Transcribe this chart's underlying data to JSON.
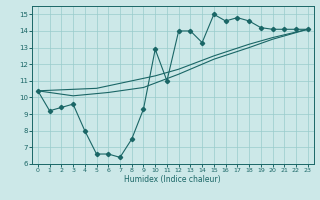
{
  "title": "",
  "xlabel": "Humidex (Indice chaleur)",
  "ylabel": "",
  "xlim": [
    -0.5,
    23.5
  ],
  "ylim": [
    6,
    15.5
  ],
  "xticks": [
    0,
    1,
    2,
    3,
    4,
    5,
    6,
    7,
    8,
    9,
    10,
    11,
    12,
    13,
    14,
    15,
    16,
    17,
    18,
    19,
    20,
    21,
    22,
    23
  ],
  "yticks": [
    6,
    7,
    8,
    9,
    10,
    11,
    12,
    13,
    14,
    15
  ],
  "bg_color": "#cce8e8",
  "grid_color": "#99cccc",
  "line_color": "#1a6666",
  "line1_x": [
    0,
    1,
    2,
    3,
    4,
    5,
    6,
    7,
    8,
    9,
    10,
    11,
    12,
    13,
    14,
    15,
    16,
    17,
    18,
    19,
    20,
    21,
    22,
    23
  ],
  "line1_y": [
    10.4,
    9.2,
    9.4,
    9.6,
    8.0,
    6.6,
    6.6,
    6.4,
    7.5,
    9.3,
    12.9,
    11.0,
    14.0,
    14.0,
    13.3,
    15.0,
    14.6,
    14.8,
    14.6,
    14.2,
    14.1,
    14.1,
    14.1,
    14.1
  ],
  "line2_x": [
    0,
    23
  ],
  "line2_y": [
    10.4,
    14.1
  ],
  "line3_x": [
    0,
    23
  ],
  "line3_y": [
    10.4,
    14.1
  ],
  "line3_ctrl_x": [
    0,
    5,
    10,
    12,
    15,
    18,
    20,
    23
  ],
  "line3_ctrl_y": [
    10.4,
    10.55,
    11.3,
    11.7,
    12.5,
    13.2,
    13.6,
    14.1
  ],
  "line4_ctrl_x": [
    0,
    3,
    6,
    9,
    12,
    15,
    18,
    20,
    23
  ],
  "line4_ctrl_y": [
    10.4,
    10.1,
    10.3,
    10.6,
    11.4,
    12.3,
    13.0,
    13.5,
    14.1
  ]
}
